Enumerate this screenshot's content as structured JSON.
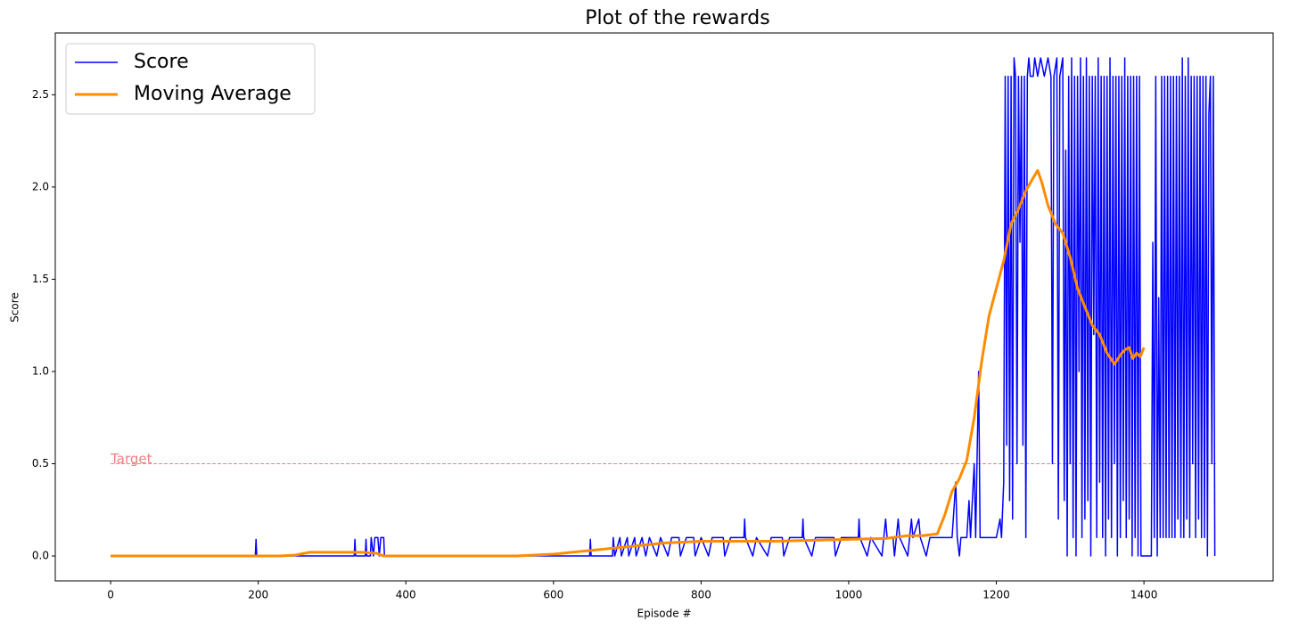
{
  "chart_data": {
    "type": "line",
    "title": "Plot of the rewards",
    "xlabel": "Episode #",
    "ylabel": "Score",
    "xlim": [
      -75,
      1575
    ],
    "ylim": [
      -0.135,
      2.835
    ],
    "xticks": [
      0,
      200,
      400,
      600,
      800,
      1000,
      1200,
      1400
    ],
    "yticks": [
      {
        "value": 0,
        "label": "0.0"
      },
      0.5,
      {
        "value": 1,
        "label": "1.0"
      },
      1.5,
      {
        "value": 2,
        "label": "2.0"
      },
      2.5
    ],
    "legend": "upper left",
    "grid": false,
    "hline": {
      "y": 0.5,
      "xmin": 0,
      "xmax": 1500,
      "label": "Target",
      "color": "#f08080"
    },
    "series": [
      {
        "name": "Score",
        "color": "#0000ff",
        "linewidth": 1.5,
        "x": [
          0,
          196,
          197,
          198,
          330,
          331,
          332,
          345,
          346,
          347,
          352,
          353,
          356,
          358,
          362,
          364,
          366,
          370,
          371,
          649,
          650,
          651,
          680,
          681,
          683,
          690,
          692,
          700,
          702,
          710,
          712,
          720,
          725,
          730,
          740,
          745,
          755,
          760,
          770,
          772,
          780,
          790,
          792,
          800,
          810,
          815,
          830,
          832,
          840,
          858,
          859,
          860,
          870,
          875,
          890,
          895,
          910,
          912,
          920,
          937,
          938,
          939,
          950,
          955,
          980,
          982,
          990,
          1013,
          1014,
          1015,
          1025,
          1030,
          1045,
          1050,
          1052,
          1060,
          1062,
          1067,
          1069,
          1080,
          1085,
          1087,
          1095,
          1097,
          1105,
          1110,
          1140,
          1145,
          1147,
          1150,
          1152,
          1160,
          1163,
          1165,
          1170,
          1172,
          1176,
          1178,
          1200,
          1205,
          1207,
          1210,
          1212,
          1214,
          1216,
          1218,
          1220,
          1222,
          1224,
          1226,
          1228,
          1230,
          1232,
          1234,
          1236,
          1238,
          1240,
          1242,
          1244,
          1246,
          1250,
          1252,
          1256,
          1260,
          1265,
          1270,
          1274,
          1276,
          1278,
          1282,
          1284,
          1286,
          1290,
          1292,
          1294,
          1296,
          1298,
          1300,
          1302,
          1304,
          1306,
          1308,
          1310,
          1312,
          1314,
          1316,
          1318,
          1320,
          1322,
          1324,
          1326,
          1328,
          1330,
          1332,
          1334,
          1336,
          1338,
          1340,
          1342,
          1344,
          1346,
          1348,
          1350,
          1352,
          1354,
          1356,
          1358,
          1360,
          1362,
          1364,
          1366,
          1368,
          1370,
          1372,
          1374,
          1376,
          1378,
          1380,
          1382,
          1384,
          1386,
          1388,
          1390,
          1392,
          1394,
          1396,
          1398,
          1410,
          1412,
          1414,
          1416,
          1418,
          1420,
          1422,
          1424,
          1426,
          1428,
          1430,
          1432,
          1434,
          1436,
          1438,
          1440,
          1442,
          1444,
          1446,
          1448,
          1450,
          1452,
          1454,
          1456,
          1458,
          1460,
          1462,
          1464,
          1466,
          1468,
          1470,
          1472,
          1474,
          1476,
          1478,
          1480,
          1482,
          1484,
          1486,
          1488,
          1490,
          1492,
          1494,
          1496
        ],
        "values": [
          0,
          0,
          0.09,
          0,
          0,
          0.09,
          0,
          0,
          0.09,
          0,
          0,
          0.1,
          0,
          0.1,
          0.1,
          0,
          0.1,
          0.1,
          0,
          0,
          0.09,
          0,
          0,
          0.1,
          0,
          0.1,
          0,
          0.1,
          0,
          0.1,
          0,
          0.1,
          0,
          0.1,
          0,
          0.1,
          0,
          0.1,
          0.1,
          0,
          0.1,
          0.1,
          0,
          0.1,
          0,
          0.1,
          0.1,
          0,
          0.1,
          0.1,
          0.2,
          0.1,
          0,
          0.1,
          0,
          0.1,
          0.1,
          0,
          0.1,
          0.1,
          0.2,
          0.1,
          0,
          0.1,
          0.1,
          0,
          0.1,
          0.1,
          0.2,
          0.1,
          0,
          0.1,
          0,
          0.2,
          0.1,
          0.1,
          0,
          0.2,
          0.1,
          0,
          0.2,
          0.1,
          0.2,
          0.1,
          0,
          0.1,
          0.1,
          0.4,
          0.1,
          0,
          0.1,
          0.1,
          0.3,
          0.1,
          0.5,
          0.1,
          1.0,
          0.1,
          0.1,
          0.2,
          0.1,
          0.4,
          2.6,
          0.6,
          2.6,
          0.3,
          2.6,
          0.2,
          2.7,
          2.6,
          0.5,
          2.6,
          1.7,
          2.6,
          0.6,
          2.6,
          0.1,
          2.6,
          2.7,
          2.6,
          2.6,
          2.7,
          2.6,
          2.7,
          2.6,
          2.7,
          2.6,
          0.5,
          2.6,
          2.7,
          0.2,
          2.6,
          2.7,
          0.3,
          2.2,
          0,
          2.6,
          0.5,
          2.7,
          0.1,
          2.6,
          0,
          2.6,
          1.0,
          2.7,
          0.1,
          2.6,
          0.2,
          2.7,
          0.3,
          2.6,
          0,
          2.6,
          1.2,
          2.6,
          0.1,
          2.7,
          0.4,
          2.6,
          0.1,
          2.6,
          0,
          2.6,
          0.2,
          2.7,
          0.1,
          2.6,
          0.5,
          2.6,
          0,
          2.6,
          0.1,
          2.6,
          0.3,
          2.7,
          0.1,
          2.6,
          0.2,
          2.6,
          0,
          2.6,
          0.1,
          2.6,
          0,
          2.6,
          0,
          0,
          0,
          1.7,
          0.1,
          2.6,
          0,
          1.4,
          0.1,
          2.6,
          0.1,
          2.6,
          0.1,
          2.6,
          0.1,
          2.6,
          0.1,
          2.6,
          0.1,
          2.6,
          0.2,
          2.6,
          0.1,
          2.7,
          0.1,
          2.6,
          0.2,
          2.7,
          0.1,
          2.6,
          0.5,
          2.6,
          0.1,
          2.6,
          0.2,
          2.6,
          0.1,
          2.6,
          0.1,
          2.6,
          0,
          2.4,
          2.6,
          0.5,
          2.6,
          0
        ]
      },
      {
        "name": "Moving Average",
        "color": "#ff8c00",
        "linewidth": 3,
        "x": [
          0,
          230,
          250,
          270,
          340,
          360,
          370,
          550,
          600,
          650,
          700,
          750,
          800,
          900,
          1000,
          1050,
          1080,
          1100,
          1120,
          1130,
          1140,
          1150,
          1160,
          1170,
          1180,
          1190,
          1200,
          1210,
          1220,
          1230,
          1240,
          1250,
          1256,
          1262,
          1270,
          1280,
          1290,
          1300,
          1310,
          1320,
          1330,
          1340,
          1350,
          1360,
          1370,
          1375,
          1380,
          1385,
          1390,
          1395,
          1400
        ],
        "values": [
          0,
          0,
          0.005,
          0.02,
          0.02,
          0.015,
          0,
          0,
          0.01,
          0.03,
          0.05,
          0.07,
          0.08,
          0.08,
          0.09,
          0.095,
          0.11,
          0.11,
          0.12,
          0.22,
          0.35,
          0.42,
          0.52,
          0.75,
          1.05,
          1.3,
          1.45,
          1.6,
          1.8,
          1.88,
          1.98,
          2.05,
          2.09,
          2.02,
          1.9,
          1.8,
          1.75,
          1.62,
          1.45,
          1.35,
          1.25,
          1.2,
          1.1,
          1.04,
          1.1,
          1.12,
          1.13,
          1.07,
          1.1,
          1.08,
          1.13
        ]
      }
    ]
  }
}
